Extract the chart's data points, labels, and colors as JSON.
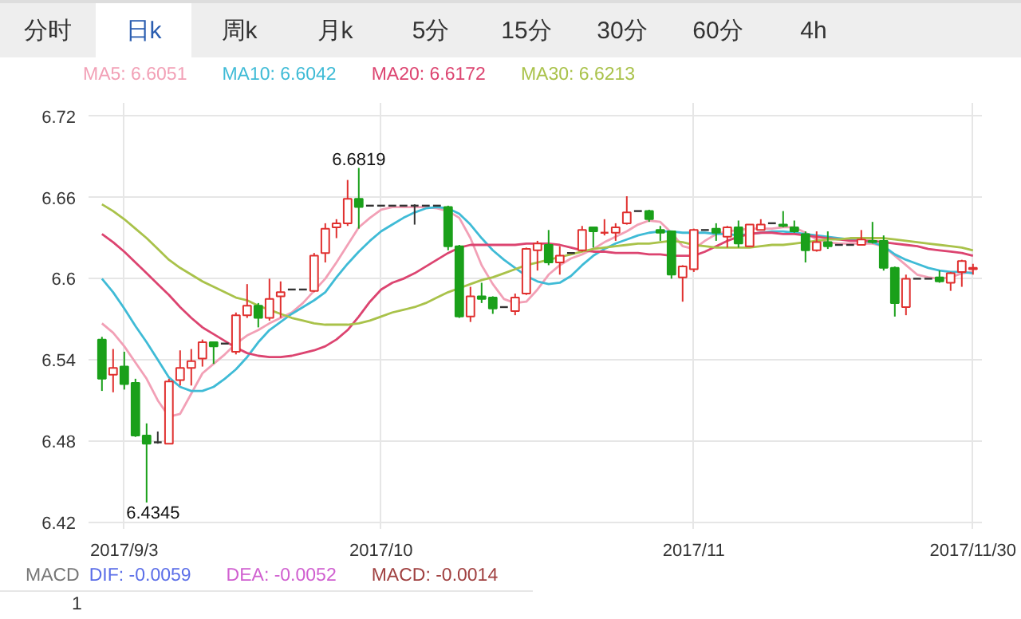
{
  "chart_data": {
    "type": "candlestick",
    "categories": [
      null,
      null,
      "2017/9/3",
      null,
      null,
      null,
      null,
      null,
      null,
      null,
      null,
      null,
      null,
      null,
      null,
      null,
      null,
      null,
      null,
      null,
      null,
      null,
      null,
      null,
      null,
      "2017/10",
      null,
      null,
      null,
      null,
      null,
      null,
      null,
      null,
      null,
      null,
      null,
      null,
      null,
      null,
      null,
      null,
      null,
      null,
      null,
      null,
      null,
      null,
      null,
      null,
      null,
      null,
      null,
      "2017/11",
      null,
      null,
      null,
      null,
      null,
      null,
      null,
      null,
      null,
      null,
      null,
      null,
      null,
      null,
      null,
      null,
      null,
      null,
      null,
      null,
      null,
      null,
      null,
      null,
      "2017/11/30"
    ],
    "ohlc": [
      [
        6.555,
        6.557,
        6.517,
        6.526
      ],
      [
        6.529,
        6.548,
        6.516,
        6.534
      ],
      [
        6.535,
        6.546,
        6.518,
        6.522
      ],
      [
        6.523,
        6.526,
        6.483,
        6.484
      ],
      [
        6.484,
        6.493,
        6.4345,
        6.478
      ],
      [
        6.479,
        6.487,
        6.478,
        6.479
      ],
      [
        6.478,
        6.526,
        6.478,
        6.524
      ],
      [
        6.525,
        6.547,
        6.521,
        6.534
      ],
      [
        6.534,
        6.548,
        6.521,
        6.539
      ],
      [
        6.541,
        6.555,
        6.535,
        6.553
      ],
      [
        6.553,
        6.553,
        6.537,
        6.55
      ],
      [
        6.552,
        6.552,
        6.552,
        6.552
      ],
      [
        6.546,
        6.575,
        6.544,
        6.573
      ],
      [
        6.573,
        6.596,
        6.571,
        6.58
      ],
      [
        6.58,
        6.582,
        6.564,
        6.571
      ],
      [
        6.571,
        6.6,
        6.569,
        6.585
      ],
      [
        6.587,
        6.598,
        6.571,
        6.59
      ],
      [
        6.592,
        6.592,
        6.592,
        6.592
      ],
      [
        6.592,
        6.592,
        6.592,
        6.592
      ],
      [
        6.591,
        6.619,
        6.59,
        6.617
      ],
      [
        6.619,
        6.641,
        6.612,
        6.637
      ],
      [
        6.638,
        6.644,
        6.63,
        6.641
      ],
      [
        6.641,
        6.673,
        6.639,
        6.659
      ],
      [
        6.659,
        6.6819,
        6.637,
        6.653
      ],
      [
        6.654,
        6.654,
        6.654,
        6.654
      ],
      [
        6.654,
        6.654,
        6.654,
        6.654
      ],
      [
        6.654,
        6.654,
        6.654,
        6.654
      ],
      [
        6.654,
        6.654,
        6.654,
        6.654
      ],
      [
        6.654,
        6.655,
        6.64,
        6.654
      ],
      [
        6.654,
        6.654,
        6.654,
        6.654
      ],
      [
        6.654,
        6.654,
        6.654,
        6.654
      ],
      [
        6.653,
        6.654,
        6.621,
        6.624
      ],
      [
        6.624,
        6.625,
        6.571,
        6.572
      ],
      [
        6.572,
        6.594,
        6.568,
        6.587
      ],
      [
        6.587,
        6.597,
        6.582,
        6.585
      ],
      [
        6.586,
        6.587,
        6.574,
        6.578
      ],
      [
        6.579,
        6.579,
        6.579,
        6.579
      ],
      [
        6.576,
        6.589,
        6.573,
        6.586
      ],
      [
        6.589,
        6.623,
        6.588,
        6.622
      ],
      [
        6.621,
        6.628,
        6.606,
        6.626
      ],
      [
        6.625,
        6.636,
        6.61,
        6.612
      ],
      [
        6.612,
        6.624,
        6.603,
        6.617
      ],
      [
        6.619,
        6.619,
        6.619,
        6.619
      ],
      [
        6.621,
        6.639,
        6.62,
        6.636
      ],
      [
        6.638,
        6.638,
        6.623,
        6.635
      ],
      [
        6.634,
        6.644,
        6.632,
        6.634
      ],
      [
        6.634,
        6.641,
        6.628,
        6.638
      ],
      [
        6.641,
        6.661,
        6.64,
        6.649
      ],
      [
        6.65,
        6.65,
        6.65,
        6.65
      ],
      [
        6.65,
        6.651,
        6.642,
        6.644
      ],
      [
        6.636,
        6.639,
        6.628,
        6.634
      ],
      [
        6.635,
        6.635,
        6.6,
        6.603
      ],
      [
        6.601,
        6.61,
        6.583,
        6.609
      ],
      [
        6.607,
        6.637,
        6.605,
        6.636
      ],
      [
        6.636,
        6.636,
        6.636,
        6.636
      ],
      [
        6.637,
        6.641,
        6.628,
        6.634
      ],
      [
        6.631,
        6.639,
        6.623,
        6.638
      ],
      [
        6.638,
        6.643,
        6.623,
        6.626
      ],
      [
        6.624,
        6.64,
        6.624,
        6.64
      ],
      [
        6.636,
        6.644,
        6.636,
        6.64
      ],
      [
        6.641,
        6.641,
        6.641,
        6.641
      ],
      [
        6.64,
        6.65,
        6.638,
        6.639
      ],
      [
        6.638,
        6.643,
        6.634,
        6.635
      ],
      [
        6.633,
        6.635,
        6.612,
        6.621
      ],
      [
        6.621,
        6.635,
        6.62,
        6.627
      ],
      [
        6.627,
        6.635,
        6.622,
        6.624
      ],
      [
        6.625,
        6.625,
        6.625,
        6.625
      ],
      [
        6.625,
        6.625,
        6.625,
        6.625
      ],
      [
        6.625,
        6.636,
        6.625,
        6.629
      ],
      [
        6.628,
        6.642,
        6.626,
        6.627
      ],
      [
        6.628,
        6.632,
        6.606,
        6.608
      ],
      [
        6.608,
        6.609,
        6.572,
        6.582
      ],
      [
        6.579,
        6.603,
        6.573,
        6.6
      ],
      [
        6.6,
        6.6,
        6.6,
        6.6
      ],
      [
        6.6,
        6.6,
        6.6,
        6.6
      ],
      [
        6.601,
        6.606,
        6.597,
        6.598
      ],
      [
        6.597,
        6.605,
        6.591,
        6.604
      ],
      [
        6.605,
        6.614,
        6.594,
        6.613
      ],
      [
        6.607,
        6.611,
        6.603,
        6.608
      ]
    ],
    "colors": [
      "#1aa01a",
      "#e0302f",
      "#1aa01a",
      "#1aa01a",
      "#1aa01a",
      "#333333",
      "#e0302f",
      "#e0302f",
      "#e0302f",
      "#e0302f",
      "#1aa01a",
      "#333333",
      "#e0302f",
      "#e0302f",
      "#1aa01a",
      "#e0302f",
      "#e0302f",
      "#333333",
      "#333333",
      "#e0302f",
      "#e0302f",
      "#e0302f",
      "#e0302f",
      "#1aa01a",
      "#333333",
      "#333333",
      "#333333",
      "#333333",
      "#333333",
      "#333333",
      "#333333",
      "#1aa01a",
      "#1aa01a",
      "#e0302f",
      "#1aa01a",
      "#1aa01a",
      "#333333",
      "#e0302f",
      "#e0302f",
      "#e0302f",
      "#1aa01a",
      "#e0302f",
      "#333333",
      "#e0302f",
      "#1aa01a",
      "#e0302f",
      "#e0302f",
      "#e0302f",
      "#333333",
      "#1aa01a",
      "#1aa01a",
      "#1aa01a",
      "#e0302f",
      "#e0302f",
      "#333333",
      "#1aa01a",
      "#e0302f",
      "#1aa01a",
      "#e0302f",
      "#e0302f",
      "#333333",
      "#1aa01a",
      "#1aa01a",
      "#1aa01a",
      "#e0302f",
      "#1aa01a",
      "#333333",
      "#333333",
      "#e0302f",
      "#1aa01a",
      "#1aa01a",
      "#1aa01a",
      "#e0302f",
      "#333333",
      "#333333",
      "#1aa01a",
      "#e0302f",
      "#e0302f",
      "#e0302f"
    ],
    "series": [
      {
        "type": "line",
        "name": "MA5: 6.6051",
        "color": "#f2a0b6",
        "values": [
          6.567,
          6.56,
          6.55,
          6.538,
          6.526,
          6.51,
          6.498,
          6.5,
          6.515,
          6.53,
          6.537,
          6.544,
          6.552,
          6.558,
          6.562,
          6.567,
          6.571,
          6.575,
          6.582,
          6.591,
          6.6,
          6.612,
          6.625,
          6.638,
          6.645,
          6.651,
          6.653,
          6.653,
          6.653,
          6.653,
          6.652,
          6.65,
          6.645,
          6.63,
          6.61,
          6.596,
          6.585,
          6.582,
          6.583,
          6.592,
          6.603,
          6.61,
          6.615,
          6.618,
          6.622,
          6.627,
          6.631,
          6.635,
          6.64,
          6.643,
          6.642,
          6.634,
          6.624,
          6.622,
          6.628,
          6.633,
          6.635,
          6.636,
          6.637,
          6.637,
          6.637,
          6.638,
          6.638,
          6.634,
          6.629,
          6.627,
          6.626,
          6.626,
          6.626,
          6.626,
          6.624,
          6.617,
          6.61,
          6.603,
          6.601,
          6.6,
          6.601,
          6.604,
          6.605
        ]
      },
      {
        "type": "line",
        "name": "MA10: 6.6042",
        "color": "#3fbbd6",
        "values": [
          6.6,
          6.59,
          6.578,
          6.565,
          6.553,
          6.54,
          6.527,
          6.52,
          6.517,
          6.517,
          6.52,
          6.526,
          6.533,
          6.542,
          6.553,
          6.562,
          6.568,
          6.574,
          6.579,
          6.584,
          6.59,
          6.601,
          6.611,
          6.62,
          6.628,
          6.635,
          6.64,
          6.645,
          6.649,
          6.652,
          6.653,
          6.652,
          6.648,
          6.64,
          6.63,
          6.621,
          6.614,
          6.608,
          6.602,
          6.598,
          6.596,
          6.597,
          6.602,
          6.61,
          6.617,
          6.622,
          6.626,
          6.629,
          6.632,
          6.634,
          6.635,
          6.635,
          6.634,
          6.634,
          6.634,
          6.633,
          6.633,
          6.632,
          6.633,
          6.634,
          6.635,
          6.635,
          6.634,
          6.633,
          6.632,
          6.631,
          6.63,
          6.629,
          6.628,
          6.627,
          6.624,
          6.618,
          6.614,
          6.611,
          6.608,
          6.606,
          6.605,
          6.605,
          6.604
        ]
      },
      {
        "type": "line",
        "name": "MA20: 6.6172",
        "color": "#dc4470",
        "values": [
          6.633,
          6.627,
          6.62,
          6.612,
          6.604,
          6.596,
          6.588,
          6.579,
          6.571,
          6.564,
          6.559,
          6.554,
          6.549,
          6.545,
          6.543,
          6.542,
          6.542,
          6.543,
          6.545,
          6.547,
          6.55,
          6.555,
          6.562,
          6.572,
          6.583,
          6.592,
          6.597,
          6.6,
          6.604,
          6.609,
          6.614,
          6.619,
          6.623,
          6.625,
          6.625,
          6.625,
          6.625,
          6.625,
          6.626,
          6.626,
          6.626,
          6.625,
          6.623,
          6.621,
          6.62,
          6.62,
          6.619,
          6.619,
          6.619,
          6.618,
          6.618,
          6.617,
          6.617,
          6.617,
          6.62,
          6.624,
          6.628,
          6.631,
          6.633,
          6.634,
          6.634,
          6.633,
          6.633,
          6.632,
          6.631,
          6.63,
          6.629,
          6.628,
          6.628,
          6.628,
          6.627,
          6.626,
          6.625,
          6.624,
          6.622,
          6.621,
          6.62,
          6.619,
          6.617
        ]
      },
      {
        "type": "line",
        "name": "MA30: 6.6213",
        "color": "#a9c24a",
        "values": [
          6.655,
          6.65,
          6.644,
          6.637,
          6.63,
          6.622,
          6.614,
          6.608,
          6.603,
          6.598,
          6.594,
          6.59,
          6.586,
          6.584,
          6.58,
          6.577,
          6.574,
          6.571,
          6.569,
          6.567,
          6.566,
          6.566,
          6.566,
          6.567,
          6.569,
          6.572,
          6.575,
          6.577,
          6.579,
          6.582,
          6.586,
          6.59,
          6.593,
          6.596,
          6.599,
          6.601,
          6.604,
          6.607,
          6.61,
          6.612,
          6.614,
          6.616,
          6.618,
          6.62,
          6.622,
          6.623,
          6.624,
          6.625,
          6.626,
          6.626,
          6.627,
          6.628,
          6.627,
          6.625,
          6.624,
          6.623,
          6.623,
          6.623,
          6.623,
          6.624,
          6.625,
          6.625,
          6.626,
          6.627,
          6.628,
          6.629,
          6.629,
          6.63,
          6.63,
          6.63,
          6.63,
          6.629,
          6.628,
          6.627,
          6.626,
          6.625,
          6.624,
          6.623,
          6.621
        ]
      }
    ],
    "ylim": [
      6.415,
      6.73
    ],
    "yticks": [
      6.42,
      6.48,
      6.54,
      6.6,
      6.66,
      6.72
    ],
    "grid": true,
    "legend": "top left",
    "annotations": [
      {
        "text": "6.6819",
        "y": 6.6819
      },
      {
        "text": "6.4345",
        "y": 6.4345
      },
      "分时",
      "日k",
      "周k",
      "月k",
      "5分",
      "15分",
      "30分",
      "60分",
      "4h",
      "MACD",
      "DIF: -0.0059",
      "DEA: -0.0052",
      "MACD: -0.0014",
      "1"
    ]
  }
}
